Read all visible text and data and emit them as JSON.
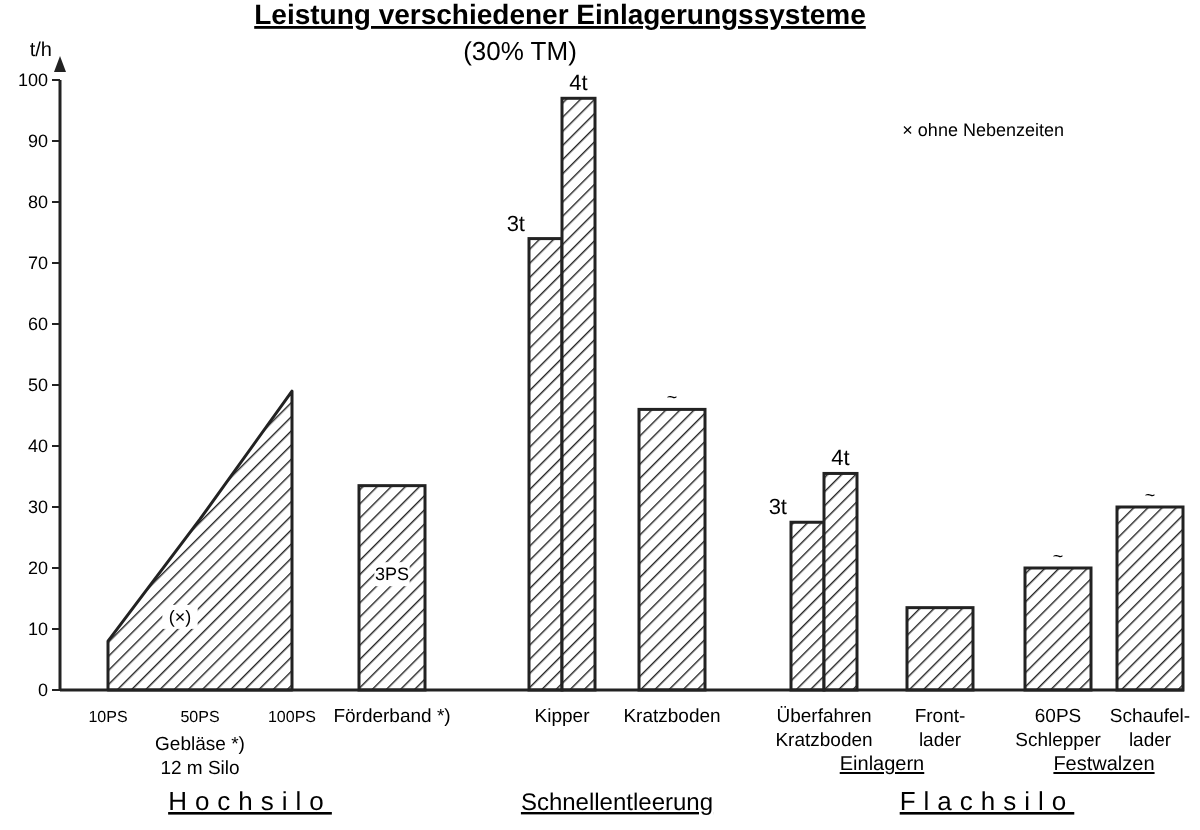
{
  "chart_data": {
    "type": "bar",
    "title": "Leistung verschiedener Einlagerungssysteme",
    "subtitle": "(30% TM)",
    "ylabel": "t/h",
    "categories": [
      "10PS",
      "50PS",
      "100PS",
      "Förderband *)",
      "Kipper",
      "Kratzboden",
      "Überfahren\nKratzboden",
      "Front-\nlader",
      "60PS\nSchlepper",
      "Schaufel-\nlader"
    ],
    "series": [
      {
        "type": "area",
        "color": "#222222",
        "values": [
          8,
          28,
          49,
          null,
          null,
          null,
          null,
          null,
          null,
          null
        ]
      },
      {
        "color": "#222222",
        "values": [
          null,
          null,
          null,
          33.5,
          null,
          46,
          null,
          13.5,
          20,
          30
        ]
      },
      {
        "name": "3t",
        "color": "#222222",
        "values": [
          null,
          null,
          null,
          null,
          74,
          null,
          27.5,
          null,
          null,
          null
        ]
      },
      {
        "name": "4t",
        "color": "#222222",
        "values": [
          null,
          null,
          null,
          null,
          97,
          null,
          35.5,
          null,
          null,
          null
        ]
      }
    ],
    "ylim": [
      0,
      100
    ],
    "yticks": [
      0,
      10,
      20,
      30,
      40,
      50,
      60,
      70,
      80,
      90,
      100
    ],
    "grid": false,
    "annotations": [
      {
        "text": "~",
        "x": "Kratzboden",
        "y": 46
      },
      {
        "text": "~",
        "x": "60PS\nSchlepper",
        "y": 20
      },
      {
        "text": "~",
        "x": "Schaufel-\nlader",
        "y": 30
      },
      "× ohne Nebenzeiten",
      "Hochsilo",
      "Schnellentleerung",
      "Flachsilo",
      "Einlagern",
      "Festwalzen",
      "(×)",
      "3PS",
      "Gebläse *)\n12 m Silo"
    ]
  }
}
